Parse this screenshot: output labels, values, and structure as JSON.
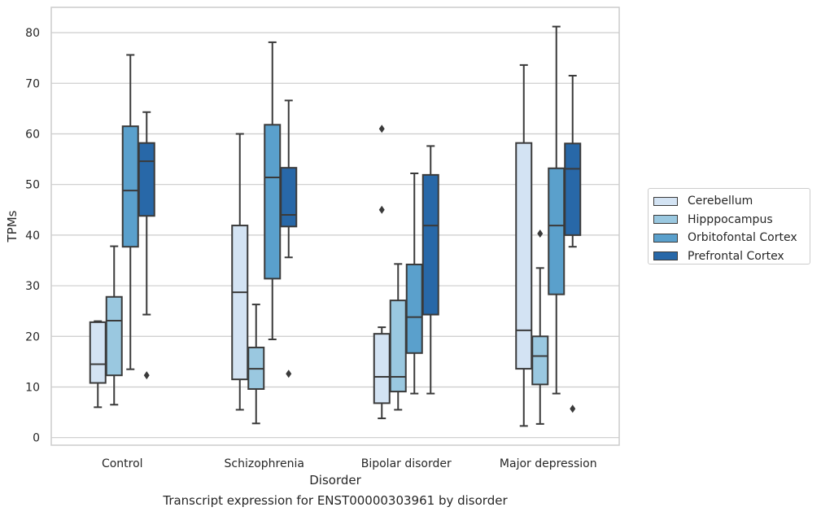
{
  "caption": "Transcript expression for ENST00000303961 by disorder",
  "chart_data": {
    "type": "boxplot",
    "title": "",
    "xlabel": "Disorder",
    "ylabel": "TPMs",
    "ylim": [
      -1.5,
      85
    ],
    "yticks": [
      0,
      10,
      20,
      30,
      40,
      50,
      60,
      70,
      80
    ],
    "categories": [
      "Control",
      "Schizophrenia",
      "Bipolar disorder",
      "Major depression"
    ],
    "grid": "horizontal",
    "legend_position": "right",
    "series": [
      {
        "name": "Cerebellum",
        "color": "#d3e3f3",
        "boxes": [
          {
            "whisker_low": 6,
            "q1": 10.8,
            "median": 14.5,
            "q3": 22.8,
            "whisker_high": 23,
            "outliers": []
          },
          {
            "whisker_low": 5.5,
            "q1": 11.5,
            "median": 28.7,
            "q3": 41.9,
            "whisker_high": 60,
            "outliers": []
          },
          {
            "whisker_low": 3.8,
            "q1": 6.8,
            "median": 12,
            "q3": 20.5,
            "whisker_high": 21.8,
            "outliers": [
              45,
              61
            ]
          },
          {
            "whisker_low": 2.3,
            "q1": 13.6,
            "median": 21.2,
            "q3": 58.2,
            "whisker_high": 73.6,
            "outliers": []
          }
        ]
      },
      {
        "name": "Hipppocampus",
        "color": "#9ac8e0",
        "boxes": [
          {
            "whisker_low": 6.5,
            "q1": 12.3,
            "median": 23.1,
            "q3": 27.8,
            "whisker_high": 37.8,
            "outliers": []
          },
          {
            "whisker_low": 2.8,
            "q1": 9.6,
            "median": 13.6,
            "q3": 17.8,
            "whisker_high": 26.3,
            "outliers": []
          },
          {
            "whisker_low": 5.5,
            "q1": 9.1,
            "median": 12,
            "q3": 27.1,
            "whisker_high": 34.3,
            "outliers": []
          },
          {
            "whisker_low": 2.7,
            "q1": 10.5,
            "median": 16.1,
            "q3": 20,
            "whisker_high": 33.5,
            "outliers": [
              40.3
            ]
          }
        ]
      },
      {
        "name": "Orbitofontal Cortex",
        "color": "#5aa0cc",
        "boxes": [
          {
            "whisker_low": 13.5,
            "q1": 37.7,
            "median": 48.8,
            "q3": 61.5,
            "whisker_high": 75.6,
            "outliers": []
          },
          {
            "whisker_low": 19.4,
            "q1": 31.4,
            "median": 51.4,
            "q3": 61.8,
            "whisker_high": 78.1,
            "outliers": []
          },
          {
            "whisker_low": 8.7,
            "q1": 16.7,
            "median": 23.8,
            "q3": 34.2,
            "whisker_high": 52.2,
            "outliers": []
          },
          {
            "whisker_low": 8.7,
            "q1": 28.3,
            "median": 41.9,
            "q3": 53.2,
            "whisker_high": 81.2,
            "outliers": []
          }
        ]
      },
      {
        "name": "Prefrontal Cortex",
        "color": "#2868a8",
        "boxes": [
          {
            "whisker_low": 24.3,
            "q1": 43.8,
            "median": 54.6,
            "q3": 58.2,
            "whisker_high": 64.3,
            "outliers": [
              12.3
            ]
          },
          {
            "whisker_low": 35.6,
            "q1": 41.7,
            "median": 44,
            "q3": 53.3,
            "whisker_high": 66.6,
            "outliers": [
              12.6
            ]
          },
          {
            "whisker_low": 8.7,
            "q1": 24.3,
            "median": 41.9,
            "q3": 51.9,
            "whisker_high": 57.6,
            "outliers": []
          },
          {
            "whisker_low": 37.7,
            "q1": 40,
            "median": 53.1,
            "q3": 58.1,
            "whisker_high": 71.5,
            "outliers": [
              5.7
            ]
          }
        ]
      }
    ]
  }
}
